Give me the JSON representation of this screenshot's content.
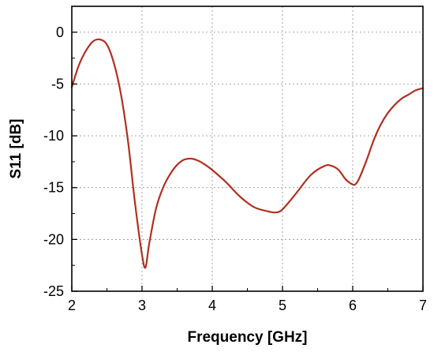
{
  "chart_data": {
    "type": "line",
    "title": "",
    "xlabel": "Frequency   [GHz]",
    "ylabel": "S11   [dB]",
    "xlim": [
      2,
      7
    ],
    "ylim": [
      -25,
      2.5
    ],
    "x_ticks": [
      2,
      3,
      4,
      5,
      6,
      7
    ],
    "y_ticks": [
      0,
      -5,
      -10,
      -15,
      -20,
      -25
    ],
    "grid": true,
    "legend": "none",
    "line_color": "#b03020",
    "series": [
      {
        "x": [
          2.0,
          2.1,
          2.2,
          2.3,
          2.4,
          2.5,
          2.6,
          2.7,
          2.8,
          2.9,
          3.0,
          3.05,
          3.1,
          3.2,
          3.3,
          3.4,
          3.5,
          3.6,
          3.7,
          3.8,
          3.9,
          4.0,
          4.2,
          4.4,
          4.6,
          4.8,
          4.9,
          5.0,
          5.2,
          5.4,
          5.6,
          5.7,
          5.8,
          5.9,
          6.0,
          6.05,
          6.1,
          6.2,
          6.3,
          6.4,
          6.5,
          6.6,
          6.7,
          6.8,
          6.9,
          7.0
        ],
        "y": [
          -5.3,
          -3.2,
          -1.8,
          -0.9,
          -0.7,
          -1.2,
          -3.0,
          -6.0,
          -10.5,
          -16.5,
          -21.5,
          -22.7,
          -20.5,
          -17.0,
          -15.0,
          -13.7,
          -12.8,
          -12.3,
          -12.2,
          -12.4,
          -12.8,
          -13.3,
          -14.5,
          -15.9,
          -16.9,
          -17.3,
          -17.4,
          -17.1,
          -15.5,
          -13.8,
          -12.9,
          -12.9,
          -13.3,
          -14.2,
          -14.7,
          -14.6,
          -14.0,
          -12.3,
          -10.4,
          -8.9,
          -7.8,
          -7.0,
          -6.4,
          -6.0,
          -5.6,
          -5.4
        ]
      }
    ]
  }
}
